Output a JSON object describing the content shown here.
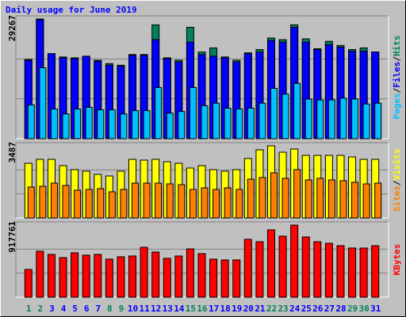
{
  "title": "Daily usage for June 2019",
  "legend_separator": "/",
  "chart_data": [
    {
      "type": "bar",
      "ylim": [
        0,
        29267
      ],
      "yticks": [
        29267
      ],
      "series": [
        {
          "name": "Hits",
          "color": "#00805c",
          "values": [
            19375,
            29267,
            20790,
            19980,
            19780,
            19980,
            19170,
            18360,
            17960,
            20580,
            20580,
            27850,
            19780,
            19170,
            27240,
            21190,
            22200,
            19980,
            19170,
            20990,
            21790,
            24620,
            24220,
            27850,
            24420,
            22000,
            23810,
            22800,
            21790,
            22200,
            21190
          ]
        },
        {
          "name": "Files",
          "color": "#0000ff",
          "values": [
            19170,
            29100,
            20790,
            19780,
            19570,
            20180,
            18970,
            17960,
            17760,
            20380,
            20380,
            24220,
            19570,
            18770,
            23610,
            20580,
            20180,
            19780,
            18770,
            20790,
            21190,
            24010,
            23610,
            27240,
            23610,
            21790,
            23010,
            22400,
            21390,
            21390,
            21190
          ]
        },
        {
          "name": "Pages",
          "color": "#00c0ff",
          "values": [
            8270,
            17350,
            7260,
            6050,
            7260,
            7670,
            7060,
            7060,
            6050,
            6860,
            6860,
            12510,
            6260,
            6660,
            12510,
            8070,
            8680,
            7470,
            7260,
            7470,
            8680,
            12310,
            10900,
            13520,
            9690,
            9480,
            9480,
            9890,
            9690,
            8480,
            8680
          ]
        }
      ]
    },
    {
      "type": "bar",
      "ylim": [
        0,
        3487
      ],
      "yticks": [
        3487
      ],
      "series": [
        {
          "name": "Visits",
          "color": "#ffff00",
          "values": [
            2643,
            2834,
            2834,
            2528,
            2336,
            2260,
            2107,
            2030,
            2260,
            2834,
            2796,
            2834,
            2719,
            2643,
            2413,
            2528,
            2336,
            2260,
            2336,
            2873,
            3294,
            3487,
            3179,
            3332,
            3026,
            3026,
            3026,
            3026,
            2949,
            2834,
            2834
          ]
        },
        {
          "name": "Sites",
          "color": "#ff8000",
          "values": [
            1494,
            1532,
            1685,
            1570,
            1341,
            1379,
            1417,
            1264,
            1379,
            1685,
            1685,
            1685,
            1647,
            1609,
            1379,
            1455,
            1379,
            1455,
            1379,
            1877,
            1953,
            2183,
            1915,
            2336,
            1838,
            1915,
            1838,
            1800,
            1724,
            1647,
            1685
          ]
        }
      ]
    },
    {
      "type": "bar",
      "ylim": [
        0,
        917761
      ],
      "yticks": [
        917761
      ],
      "categories": [
        "1",
        "2",
        "3",
        "4",
        "5",
        "6",
        "7",
        "8",
        "9",
        "10",
        "11",
        "12",
        "13",
        "14",
        "15",
        "16",
        "17",
        "18",
        "19",
        "20",
        "21",
        "22",
        "23",
        "24",
        "25",
        "26",
        "27",
        "28",
        "29",
        "30",
        "31"
      ],
      "category_colors": [
        "#00805c",
        "#00805c",
        "#0000ff",
        "#0000ff",
        "#0000ff",
        "#0000ff",
        "#0000ff",
        "#00805c",
        "#00805c",
        "#0000ff",
        "#0000ff",
        "#0000ff",
        "#0000ff",
        "#0000ff",
        "#00805c",
        "#00805c",
        "#0000ff",
        "#0000ff",
        "#0000ff",
        "#0000ff",
        "#0000ff",
        "#00805c",
        "#00805c",
        "#0000ff",
        "#0000ff",
        "#0000ff",
        "#0000ff",
        "#0000ff",
        "#00805c",
        "#00805c",
        "#0000ff"
      ],
      "series": [
        {
          "name": "KBytes",
          "color": "#ff0000",
          "values": [
            352975,
            584930,
            544590,
            504250,
            564760,
            534500,
            544590,
            484080,
            514340,
            524420,
            635360,
            574850,
            494170,
            524420,
            615190,
            554680,
            484080,
            474000,
            474000,
            736210,
            705950,
            857230,
            776550,
            917761,
            766460,
            705950,
            685780,
            655530,
            625270,
            625270,
            655530
          ]
        }
      ]
    }
  ]
}
